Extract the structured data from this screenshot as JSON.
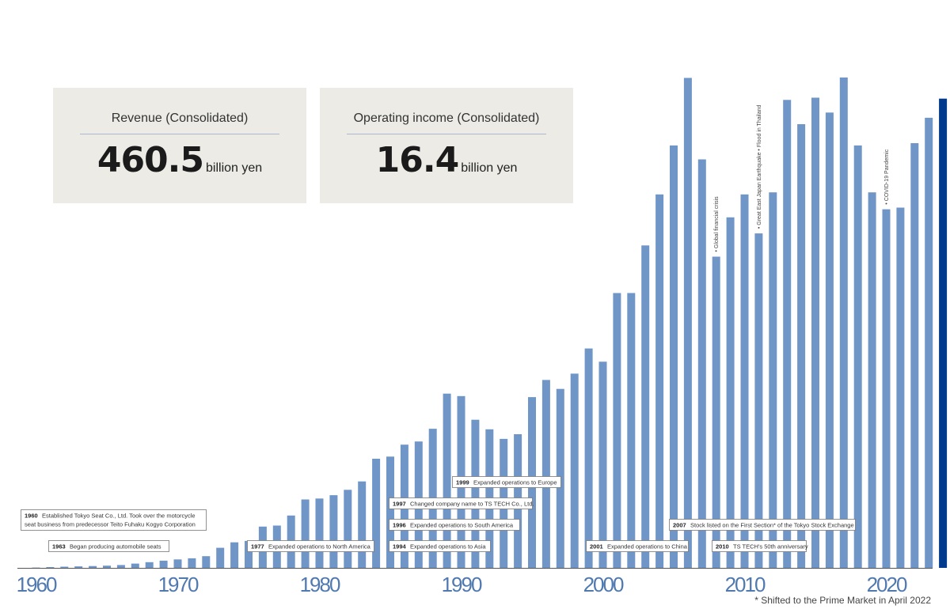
{
  "kpis": [
    {
      "label": "Revenue (Consolidated)",
      "value": "460.5",
      "unit": "billion yen"
    },
    {
      "label": "Operating income (Consolidated)",
      "value": "16.4",
      "unit": "billion yen"
    }
  ],
  "footnote": "* Shifted to the Prime Market in April 2022",
  "colors": {
    "bar": "#7096c7",
    "highlight": "#003a8c",
    "axis_label": "#5079b0",
    "event_box_border": "#777777"
  },
  "chart_data": {
    "type": "bar",
    "title": "",
    "xlabel": "",
    "ylabel": "",
    "x_tick_labels": [
      "1960",
      "1970",
      "1980",
      "1990",
      "2000",
      "2010",
      "2020"
    ],
    "x_ticks": [
      1960,
      1970,
      1980,
      1990,
      2000,
      2010,
      2020
    ],
    "xlim": [
      1959,
      2025
    ],
    "ylim": [
      0,
      500
    ],
    "grid": false,
    "categories": [
      1960,
      1961,
      1962,
      1963,
      1964,
      1965,
      1966,
      1967,
      1968,
      1969,
      1970,
      1971,
      1972,
      1973,
      1974,
      1975,
      1976,
      1977,
      1978,
      1979,
      1980,
      1981,
      1982,
      1983,
      1984,
      1985,
      1986,
      1987,
      1988,
      1989,
      1990,
      1991,
      1992,
      1993,
      1994,
      1995,
      1996,
      1997,
      1998,
      1999,
      2000,
      2001,
      2002,
      2003,
      2004,
      2005,
      2006,
      2007,
      2008,
      2009,
      2010,
      2011,
      2012,
      2013,
      2014,
      2015,
      2016,
      2017,
      2018,
      2019,
      2020,
      2021,
      2022,
      2023,
      2024
    ],
    "values": [
      0.3,
      0.8,
      1.2,
      1.5,
      1.8,
      2.2,
      2.8,
      4.2,
      5.6,
      7.1,
      8.3,
      9.4,
      11.5,
      19.7,
      25.1,
      26.5,
      40.5,
      41.5,
      51.4,
      67.1,
      68.1,
      71.3,
      76.6,
      84.8,
      107.1,
      109.2,
      120.9,
      124.0,
      136.5,
      171.0,
      168.6,
      145.4,
      136.0,
      126.6,
      131.2,
      167.6,
      184.4,
      175.6,
      190.6,
      215.3,
      202.3,
      269.7,
      269.7,
      316.4,
      366.5,
      414.5,
      480.8,
      400.9,
      305.4,
      344.0,
      366.5,
      328.2,
      368.5,
      459.2,
      435.4,
      461.4,
      446.8,
      481.2,
      414.5,
      368.5,
      351.9,
      353.5,
      416.8,
      441.7,
      460.5
    ],
    "highlight_index": 64,
    "events": [
      {
        "year": "1960",
        "text": "Established Tokyo Seat Co., Ltd. Took over the motorcycle",
        "text2": "seat business from predecessor Teito Fuhaku Kogyo Corporation"
      },
      {
        "year": "1963",
        "text": "Began producing automobile seats",
        "text2": ""
      },
      {
        "year": "1977",
        "text": "Expanded operations to North America",
        "text2": ""
      },
      {
        "year": "1994",
        "text": "Expanded operations to Asia",
        "text2": ""
      },
      {
        "year": "1996",
        "text": "Expanded operations to South America",
        "text2": ""
      },
      {
        "year": "1997",
        "text": "Changed company name to TS TECH Co., Ltd.",
        "text2": ""
      },
      {
        "year": "1999",
        "text": "Expanded operations to Europe",
        "text2": ""
      },
      {
        "year": "2001",
        "text": "Expanded operations to China",
        "text2": ""
      },
      {
        "year": "2007",
        "text": "Stock listed on the First Section* of the Tokyo Stock Exchange",
        "text2": ""
      },
      {
        "year": "2010",
        "text": "TS TECH's 50th anniversary",
        "text2": ""
      }
    ],
    "annotations": [
      {
        "year": 2008,
        "text": "• Global financial crisis"
      },
      {
        "year": 2011,
        "text": "• Great East Japan Earthquake • Flood in Thailand"
      },
      {
        "year": 2020,
        "text": "• COVID-19 Pandemic"
      }
    ]
  }
}
